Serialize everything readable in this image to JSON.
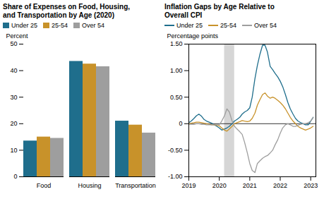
{
  "chart_data": [
    {
      "type": "bar",
      "title": "Share of Expenses on Food, Housing,\nand Transportation by Age (2020)",
      "ylabel": "Percent",
      "categories": [
        "Food",
        "Housing",
        "Transportation"
      ],
      "series": [
        {
          "name": "Under 25",
          "color": "#1f6e8c",
          "values": [
            13.5,
            43.5,
            21.0
          ]
        },
        {
          "name": "25-54",
          "color": "#c8922a",
          "values": [
            15.0,
            42.5,
            19.5
          ]
        },
        {
          "name": "Over 54",
          "color": "#9e9e9e",
          "values": [
            14.5,
            41.5,
            16.5
          ]
        }
      ],
      "ylim": [
        0,
        50
      ],
      "yticks": [
        0,
        10,
        20,
        30,
        40,
        50
      ],
      "legend": "top",
      "grid": false
    },
    {
      "type": "line",
      "title": "Inflation Gaps by Age Relative to\nOverall CPI",
      "ylabel": "Percentage points",
      "x": [
        2019.0,
        2019.08,
        2019.17,
        2019.25,
        2019.33,
        2019.42,
        2019.5,
        2019.58,
        2019.67,
        2019.75,
        2019.83,
        2019.92,
        2020.0,
        2020.08,
        2020.17,
        2020.25,
        2020.33,
        2020.42,
        2020.5,
        2020.58,
        2020.67,
        2020.75,
        2020.83,
        2020.92,
        2021.0,
        2021.08,
        2021.17,
        2021.25,
        2021.33,
        2021.42,
        2021.5,
        2021.58,
        2021.67,
        2021.75,
        2021.83,
        2021.92,
        2022.0,
        2022.08,
        2022.17,
        2022.25,
        2022.33,
        2022.42,
        2022.5,
        2022.58,
        2022.67,
        2022.75,
        2022.83,
        2022.92,
        2023.0,
        2023.08
      ],
      "series": [
        {
          "name": "Under 25",
          "color": "#1f6e8c",
          "values": [
            0.02,
            0.05,
            0.1,
            0.15,
            0.18,
            0.14,
            0.08,
            0.05,
            0.03,
            0.01,
            -0.02,
            -0.05,
            -0.08,
            -0.12,
            -0.1,
            -0.08,
            -0.05,
            0.0,
            0.05,
            0.08,
            0.12,
            0.18,
            0.22,
            0.25,
            0.3,
            0.5,
            0.85,
            1.1,
            1.3,
            1.48,
            1.48,
            1.35,
            1.08,
            1.02,
            0.95,
            0.88,
            0.8,
            0.7,
            0.55,
            0.4,
            0.28,
            0.18,
            0.1,
            0.05,
            0.02,
            0.0,
            -0.02,
            -0.02,
            0.05,
            0.12
          ]
        },
        {
          "name": "25-54",
          "color": "#c8922a",
          "values": [
            0.0,
            0.01,
            0.02,
            0.03,
            0.03,
            0.02,
            0.01,
            0.0,
            -0.01,
            -0.02,
            -0.02,
            -0.03,
            -0.04,
            -0.08,
            -0.12,
            -0.14,
            -0.1,
            -0.05,
            0.0,
            0.02,
            0.04,
            0.06,
            0.05,
            0.04,
            0.05,
            0.1,
            0.2,
            0.35,
            0.45,
            0.55,
            0.58,
            0.52,
            0.48,
            0.5,
            0.48,
            0.44,
            0.4,
            0.35,
            0.28,
            0.2,
            0.12,
            0.05,
            0.0,
            -0.05,
            -0.08,
            -0.1,
            -0.12,
            -0.1,
            -0.08,
            -0.05
          ]
        },
        {
          "name": "Over 54",
          "color": "#9e9e9e",
          "values": [
            -0.01,
            -0.01,
            -0.01,
            0.0,
            0.0,
            -0.01,
            -0.01,
            -0.02,
            -0.02,
            -0.02,
            -0.02,
            -0.02,
            -0.02,
            0.05,
            0.15,
            0.28,
            0.22,
            0.05,
            -0.05,
            -0.1,
            -0.15,
            -0.2,
            -0.35,
            -0.55,
            -0.75,
            -0.88,
            -0.92,
            -0.75,
            -0.7,
            -0.65,
            -0.62,
            -0.6,
            -0.55,
            -0.5,
            -0.4,
            -0.3,
            -0.18,
            -0.08,
            -0.02,
            0.0,
            -0.02,
            -0.05,
            -0.05,
            -0.03,
            -0.01,
            0.0,
            0.0,
            0.02,
            0.05,
            0.12
          ]
        }
      ],
      "xlim": [
        2019.0,
        2023.17
      ],
      "xticks": [
        2019,
        2020,
        2021,
        2022,
        2023
      ],
      "ylim": [
        -1.0,
        1.5
      ],
      "yticks": [
        {
          "value": -1.0,
          "label": "-1.00"
        },
        {
          "value": -0.5,
          "label": "-0.50"
        },
        0,
        {
          "value": 0.5,
          "label": "0.50"
        },
        {
          "value": 1.0,
          "label": "1.00"
        },
        {
          "value": 1.5,
          "label": "1.50"
        }
      ],
      "shaded_span": [
        2020.17,
        2020.5
      ],
      "hline": 0,
      "legend": "top",
      "grid": false
    }
  ]
}
